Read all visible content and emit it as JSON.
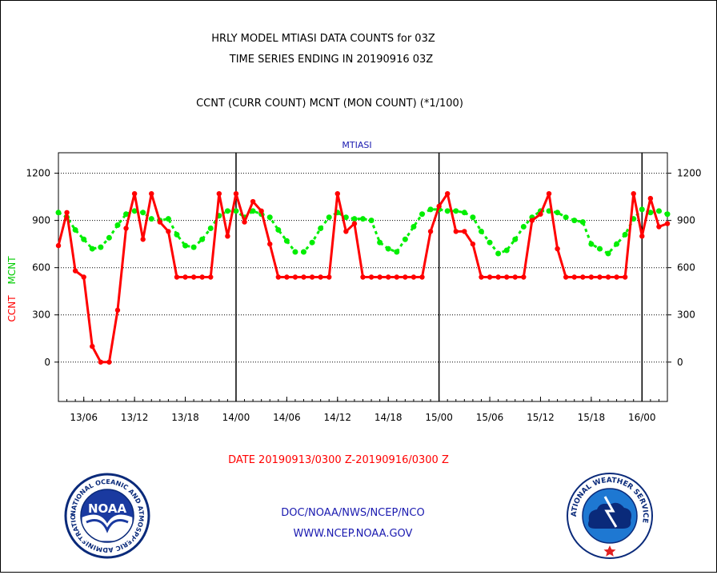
{
  "header": {
    "title1": "HRLY MODEL MTIASI DATA COUNTS for 03Z",
    "title2": "TIME SERIES ENDING IN 20190916 03Z",
    "legend_line": "CCNT (CURR COUNT) MCNT (MON COUNT) (*1/100)"
  },
  "chart_data": {
    "type": "line",
    "title": "MTIASI",
    "ylabel_left_1": "CCNT",
    "ylabel_left_2": "MCNT",
    "ylim": [
      -250,
      1330
    ],
    "yticks": [
      0,
      300,
      600,
      900,
      1200
    ],
    "ytick_labels": [
      "0",
      "300",
      "600",
      "900",
      "1200"
    ],
    "xlim": [
      3,
      75
    ],
    "xticks": [
      6,
      12,
      18,
      24,
      30,
      36,
      42,
      48,
      54,
      60,
      66,
      72
    ],
    "xtick_labels": [
      "13/06",
      "13/12",
      "13/18",
      "14/00",
      "14/06",
      "14/12",
      "14/18",
      "15/00",
      "15/06",
      "15/12",
      "15/18",
      "16/00"
    ],
    "day_boundaries": [
      24,
      48,
      72
    ],
    "grid": true,
    "series": [
      {
        "name": "CCNT",
        "color": "#ff0000",
        "x": [
          3,
          4,
          5,
          6,
          7,
          8,
          9,
          10,
          11,
          12,
          13,
          14,
          15,
          16,
          17,
          18,
          19,
          20,
          21,
          22,
          23,
          24,
          25,
          26,
          27,
          28,
          29,
          30,
          31,
          32,
          33,
          34,
          35,
          36,
          37,
          38,
          39,
          40,
          41,
          42,
          43,
          44,
          45,
          46,
          47,
          48,
          49,
          50,
          51,
          52,
          53,
          54,
          55,
          56,
          57,
          58,
          59,
          60,
          61,
          62,
          63,
          64,
          65,
          66,
          67,
          68,
          69,
          70,
          71,
          72,
          73,
          74,
          75
        ],
        "values": [
          740,
          950,
          580,
          540,
          100,
          0,
          0,
          330,
          850,
          1070,
          780,
          1070,
          890,
          830,
          540,
          540,
          540,
          540,
          540,
          1070,
          800,
          1070,
          890,
          1020,
          960,
          750,
          540,
          540,
          540,
          540,
          540,
          540,
          540,
          1070,
          830,
          880,
          540,
          540,
          540,
          540,
          540,
          540,
          540,
          540,
          830,
          990,
          1070,
          830,
          830,
          750,
          540,
          540,
          540,
          540,
          540,
          540,
          900,
          940,
          1070,
          720,
          540,
          540,
          540,
          540,
          540,
          540,
          540,
          540,
          1070,
          800,
          1040,
          860,
          880
        ]
      },
      {
        "name": "MCNT",
        "color": "#00ee00",
        "x": [
          3,
          4,
          5,
          6,
          7,
          8,
          9,
          10,
          11,
          12,
          13,
          14,
          15,
          16,
          17,
          18,
          19,
          20,
          21,
          22,
          23,
          24,
          25,
          26,
          27,
          28,
          29,
          30,
          31,
          32,
          33,
          34,
          35,
          36,
          37,
          38,
          39,
          40,
          41,
          42,
          43,
          44,
          45,
          46,
          47,
          48,
          49,
          50,
          51,
          52,
          53,
          54,
          55,
          56,
          57,
          58,
          59,
          60,
          61,
          62,
          63,
          64,
          65,
          66,
          67,
          68,
          69,
          70,
          71,
          72,
          73,
          74,
          75
        ],
        "values": [
          950,
          920,
          840,
          780,
          720,
          730,
          790,
          870,
          940,
          960,
          950,
          910,
          900,
          910,
          810,
          740,
          730,
          780,
          850,
          930,
          960,
          960,
          920,
          960,
          940,
          920,
          840,
          770,
          700,
          700,
          760,
          850,
          920,
          950,
          920,
          910,
          910,
          900,
          760,
          720,
          700,
          780,
          860,
          940,
          970,
          970,
          960,
          960,
          950,
          920,
          830,
          760,
          690,
          710,
          780,
          860,
          920,
          960,
          960,
          950,
          920,
          900,
          890,
          750,
          720,
          690,
          750,
          810,
          910,
          970,
          950,
          960,
          940
        ]
      }
    ]
  },
  "footer": {
    "date_range": "DATE 20190913/0300 Z-20190916/0300 Z",
    "link1": "DOC/NOAA/NWS/NCEP/NCO",
    "link2": "WWW.NCEP.NOAA.GOV"
  },
  "logos": {
    "noaa_text": "NOAA",
    "noaa_ring": "NATIONAL OCEANIC AND ATMOSPHERIC ADMINISTRATION · U.S. DEPARTMENT OF COMMERCE",
    "nws_ring": "NATIONAL WEATHER SERVICE"
  }
}
